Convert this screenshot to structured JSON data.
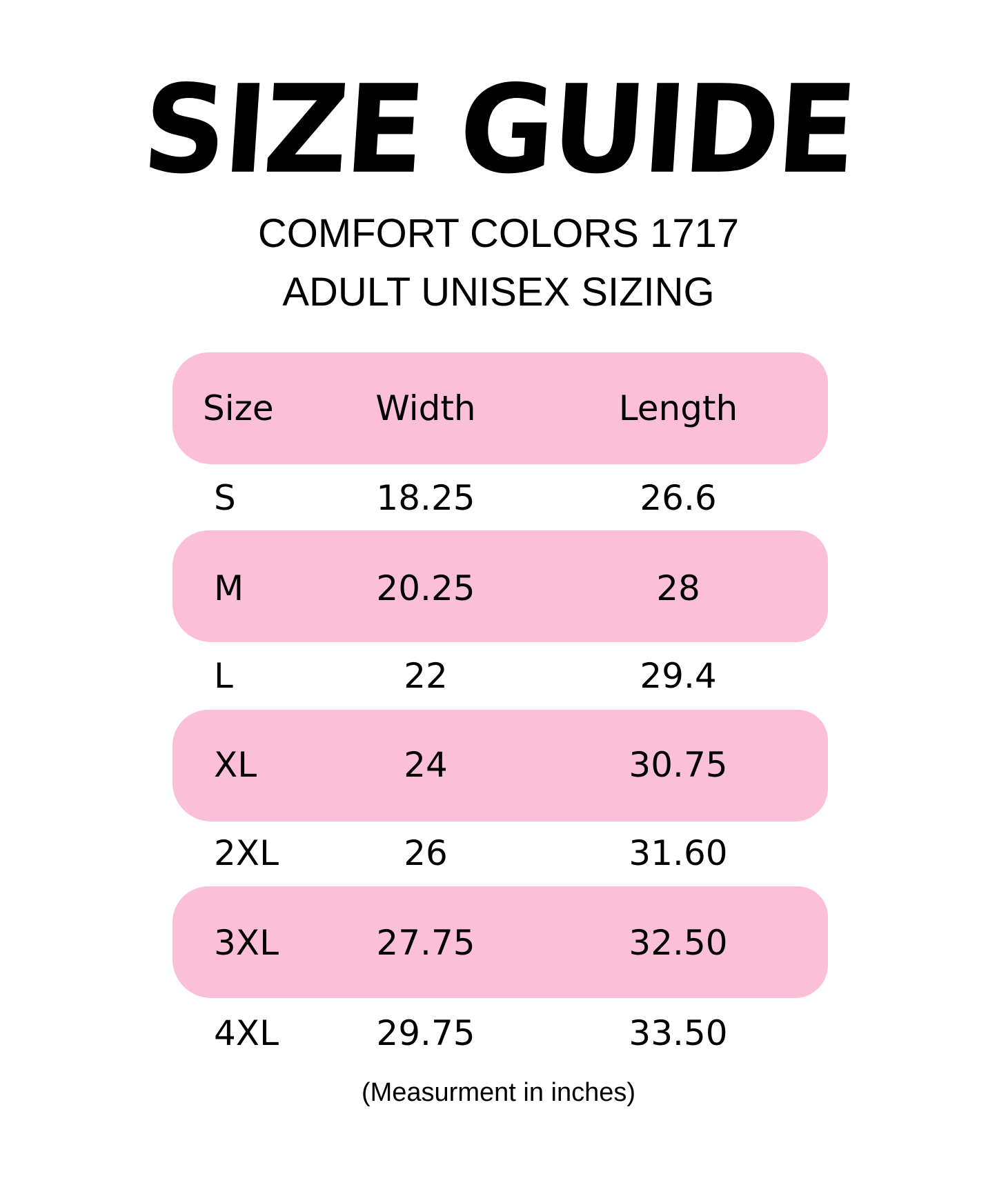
{
  "title": "SIZE GUIDE",
  "subtitle_line1": "COMFORT COLORS 1717",
  "subtitle_line2": "ADULT UNISEX SIZING",
  "colors": {
    "band": "#fbbfd7",
    "text": "#000000"
  },
  "table": {
    "headers": [
      "Size",
      "Width",
      "Length"
    ],
    "rows": [
      [
        "S",
        "18.25",
        "26.6"
      ],
      [
        "M",
        "20.25",
        "28"
      ],
      [
        "L",
        "22",
        "29.4"
      ],
      [
        "XL",
        "24",
        "30.75"
      ],
      [
        "2XL",
        "26",
        "31.60"
      ],
      [
        "3XL",
        "27.75",
        "32.50"
      ],
      [
        "4XL",
        "29.75",
        "33.50"
      ]
    ]
  },
  "footnote": "(Measurment in inches)"
}
